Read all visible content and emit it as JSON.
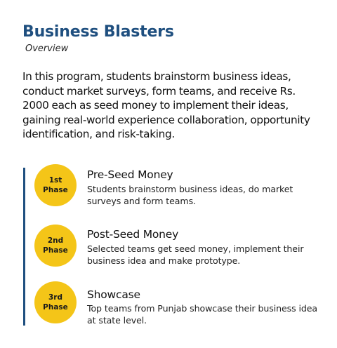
{
  "header": {
    "title": "Business Blasters",
    "subtitle": "Overview"
  },
  "intro": "In this program, students brainstorm business ideas, conduct market surveys, form teams, and receive Rs. 2000 each as seed money to implement their ideas, gaining  real-world experience collaboration, opportunity identification, and risk-taking.",
  "accent_colors": {
    "title": "#1f4f7f",
    "timeline_bar": "#1f4f7f",
    "badge": "#f4c518"
  },
  "phases": [
    {
      "badge_line1": "1st",
      "badge_line2": "Phase",
      "heading": "Pre-Seed Money",
      "description": "Students brainstorm business ideas, do market surveys and form teams."
    },
    {
      "badge_line1": "2nd",
      "badge_line2": "Phase",
      "heading": "Post-Seed Money",
      "description": "Selected teams get seed money,  implement their business idea and make prototype."
    },
    {
      "badge_line1": "3rd",
      "badge_line2": "Phase",
      "heading": "Showcase",
      "description": "Top teams from Punjab showcase their business idea at state level."
    }
  ]
}
